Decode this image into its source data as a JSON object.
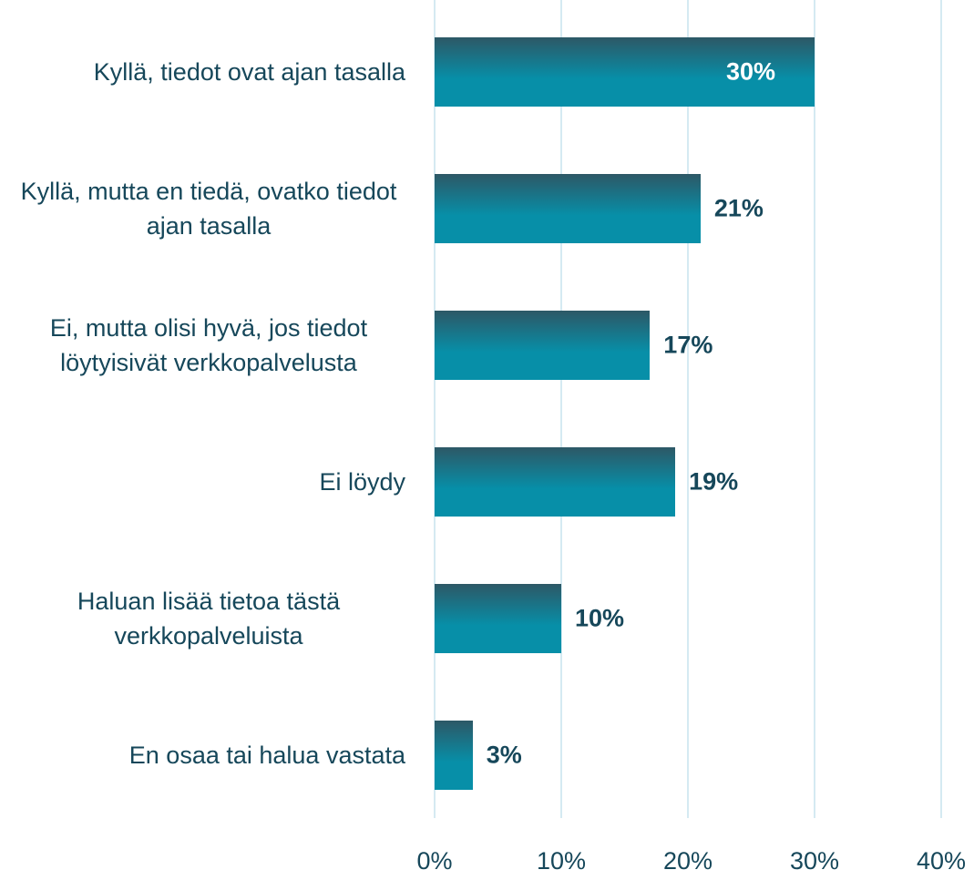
{
  "chart_data": {
    "type": "bar",
    "orientation": "horizontal",
    "categories": [
      "Kyllä, tiedot ovat ajan tasalla",
      "Kyllä, mutta en tiedä, ovatko tiedot ajan tasalla",
      "Ei, mutta olisi hyvä, jos tiedot löytyisivät verkkopalvelusta",
      "Ei löydy",
      "Haluan lisää tietoa tästä verkkopalveluista",
      "En osaa tai halua vastata"
    ],
    "values": [
      30,
      21,
      17,
      19,
      10,
      3
    ],
    "value_labels": [
      "30%",
      "21%",
      "17%",
      "19%",
      "10%",
      "3%"
    ],
    "xlim": [
      0,
      40
    ],
    "xticks": [
      {
        "value": 0,
        "label": "0%"
      },
      {
        "value": 10,
        "label": "10%"
      },
      {
        "value": 20,
        "label": "20%"
      },
      {
        "value": 30,
        "label": "30%"
      },
      {
        "value": 40,
        "label": "40%"
      }
    ],
    "grid": true,
    "color": [
      "#2d5866",
      "#078fa8"
    ]
  }
}
